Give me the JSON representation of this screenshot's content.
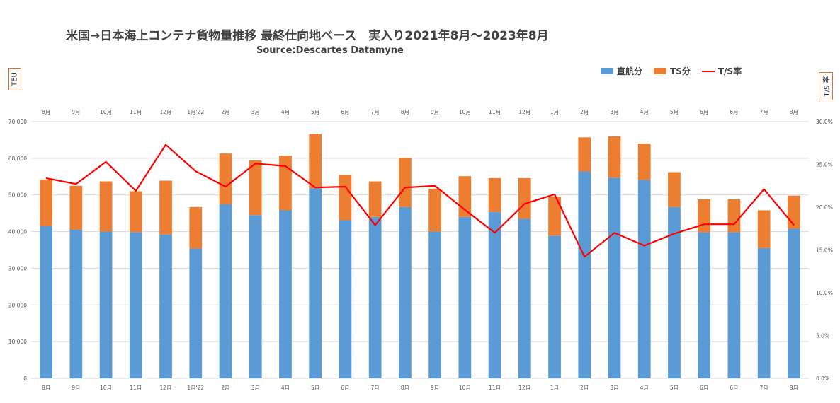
{
  "title": "米国→日本海上コンテナ貨物量推移 最終仕向地ベース　実入り2021年8月～2023年8月",
  "subtitle": "Source:Descartes Datamyne",
  "left_unit": "TEU",
  "right_unit": "T/S 率",
  "colors": {
    "direct": "#5b9bd5",
    "ts": "#ed7d31",
    "rate": "#ff0000",
    "grid": "#d9d9d9",
    "text": "#595959"
  },
  "legend": {
    "direct": "直航分",
    "ts": "TS分",
    "rate": "T/S率"
  },
  "chart_data": {
    "type": "bar",
    "stacked": true,
    "categories": [
      "8月",
      "9月",
      "10月",
      "11月",
      "12月",
      "1月'22",
      "2月",
      "3月",
      "4月",
      "5月",
      "6月",
      "7月",
      "8月",
      "9月",
      "10月",
      "11月",
      "12月",
      "1月",
      "2月",
      "3月",
      "4月",
      "5月",
      "6月",
      "6月",
      "7月",
      "8月"
    ],
    "series": [
      {
        "name": "直航分",
        "axis": "left",
        "values": [
          41500,
          40500,
          40000,
          39800,
          39200,
          35400,
          47500,
          44500,
          45800,
          51800,
          43100,
          44000,
          46700,
          40000,
          44000,
          45300,
          43500,
          38900,
          56400,
          54700,
          54100,
          46700,
          39800,
          39800,
          35500,
          40800
        ]
      },
      {
        "name": "TS分",
        "axis": "left",
        "values": [
          12700,
          12000,
          13700,
          11200,
          14700,
          11300,
          13800,
          14900,
          14900,
          14800,
          12400,
          9700,
          13400,
          11700,
          11100,
          9300,
          11100,
          10600,
          9300,
          11300,
          9900,
          9500,
          9000,
          9000,
          10300,
          9000
        ]
      },
      {
        "name": "T/S率",
        "type": "line",
        "axis": "right",
        "values": [
          23.4,
          22.7,
          25.3,
          21.9,
          27.3,
          24.2,
          22.4,
          25.1,
          24.8,
          22.3,
          22.4,
          17.9,
          22.3,
          22.5,
          19.7,
          17.0,
          20.4,
          21.5,
          14.2,
          17.0,
          15.5,
          16.9,
          18.0,
          18.0,
          22.1,
          17.9
        ]
      }
    ],
    "y_left": {
      "min": 0,
      "max": 70000,
      "ticks": [
        "0",
        "10,000",
        "20,000",
        "30,000",
        "40,000",
        "50,000",
        "60,000",
        "70,000"
      ]
    },
    "y_right": {
      "min": 0,
      "max": 30,
      "ticks": [
        "0.0%",
        "5.0%",
        "10.0%",
        "15.0%",
        "20.0%",
        "25.0%",
        "30.0%"
      ]
    },
    "grid": true,
    "legend_position": "top-right"
  }
}
